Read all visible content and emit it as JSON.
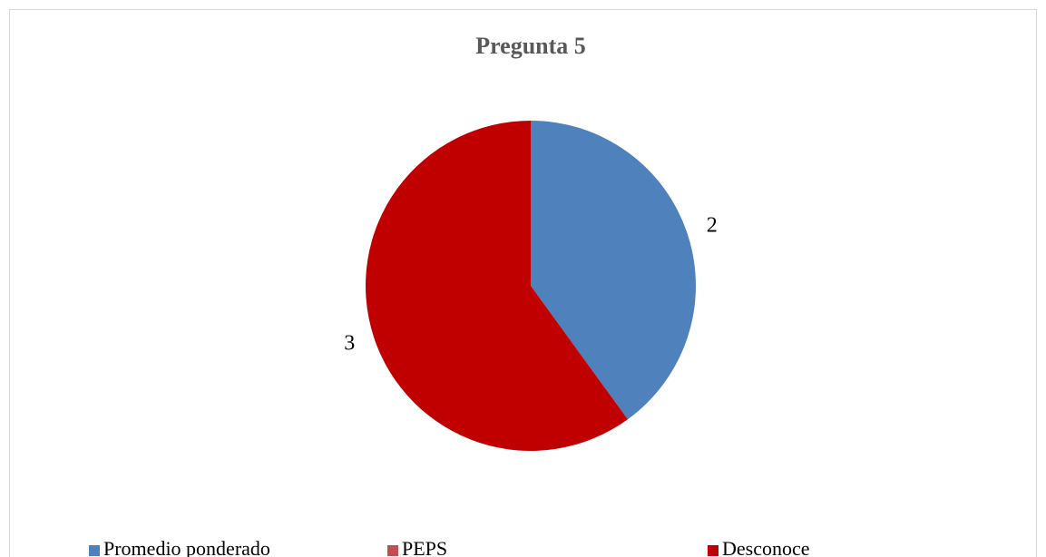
{
  "chart_data": {
    "type": "pie",
    "title": "Pregunta 5",
    "categories": [
      "Promedio ponderado",
      "PEPS",
      "Desconoce"
    ],
    "values": [
      2,
      0,
      3
    ],
    "colors": [
      "#4f81bd",
      "#c0504d",
      "#c00000"
    ],
    "legend": "bottom"
  }
}
